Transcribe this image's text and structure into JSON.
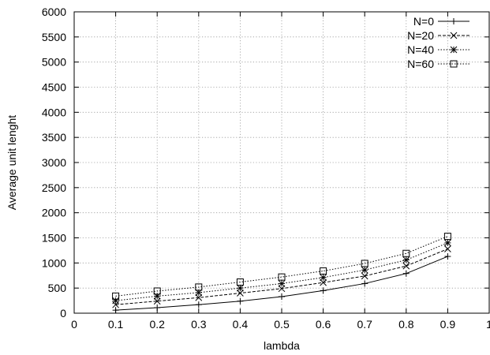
{
  "chart_data": {
    "type": "line",
    "xlabel": "lambda",
    "ylabel": "Average unit lenght",
    "xlim": [
      0,
      1
    ],
    "ylim": [
      0,
      6000
    ],
    "xticks": [
      "0",
      "0.1",
      "0.2",
      "0.3",
      "0.4",
      "0.5",
      "0.6",
      "0.7",
      "0.8",
      "0.9",
      "1"
    ],
    "yticks": [
      "0",
      "500",
      "1000",
      "1500",
      "2000",
      "2500",
      "3000",
      "3500",
      "4000",
      "4500",
      "5000",
      "5500",
      "6000"
    ],
    "grid": true,
    "legend_position": "top-right",
    "x": [
      0.1,
      0.2,
      0.3,
      0.4,
      0.5,
      0.6,
      0.7,
      0.8,
      0.9
    ],
    "series": [
      {
        "name": "N=0",
        "marker": "plus",
        "line": "solid",
        "values": [
          60,
          110,
          170,
          240,
          330,
          450,
          590,
          790,
          1130
        ]
      },
      {
        "name": "N=20",
        "marker": "cross",
        "line": "dashed",
        "values": [
          170,
          240,
          310,
          400,
          490,
          610,
          740,
          940,
          1280
        ]
      },
      {
        "name": "N=40",
        "marker": "star",
        "line": "dotted",
        "values": [
          250,
          340,
          410,
          500,
          590,
          710,
          860,
          1060,
          1400
        ]
      },
      {
        "name": "N=60",
        "marker": "square",
        "line": "dotted",
        "values": [
          340,
          440,
          520,
          620,
          720,
          840,
          990,
          1190,
          1530
        ]
      }
    ]
  }
}
